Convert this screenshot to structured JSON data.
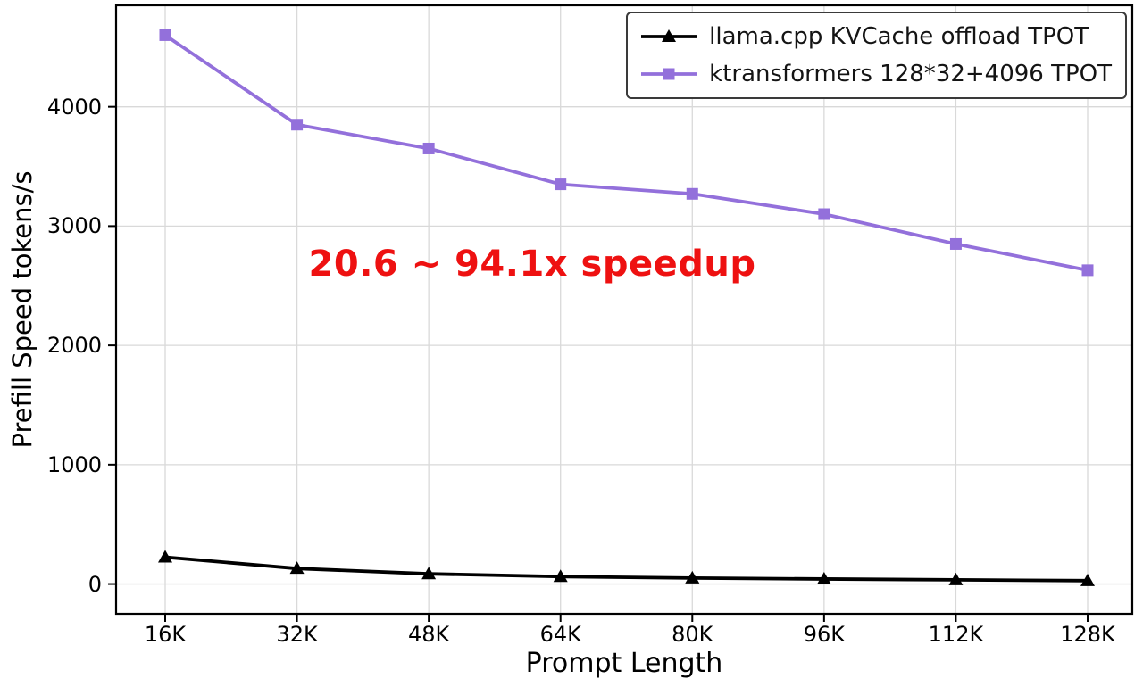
{
  "chart_data": {
    "type": "line",
    "title": "",
    "xlabel": "Prompt Length",
    "ylabel": "Prefill Speed tokens/s",
    "categories": [
      "16K",
      "32K",
      "48K",
      "64K",
      "80K",
      "96K",
      "112K",
      "128K"
    ],
    "series": [
      {
        "name": "llama.cpp KVCache offload TPOT",
        "color": "#000000",
        "marker": "triangle",
        "values": [
          225,
          130,
          85,
          62,
          50,
          42,
          35,
          28
        ]
      },
      {
        "name": "ktransformers 128*32+4096 TPOT",
        "color": "#9370db",
        "marker": "square",
        "values": [
          4600,
          3850,
          3650,
          3350,
          3270,
          3100,
          2850,
          2630
        ]
      }
    ],
    "yticks": [
      0,
      1000,
      2000,
      3000,
      4000
    ],
    "ylim": [
      -250,
      4850
    ],
    "grid": true,
    "legend_position": "upper right",
    "annotation": {
      "text": "20.6 ~ 94.1x speedup",
      "color": "#ee1111"
    }
  }
}
